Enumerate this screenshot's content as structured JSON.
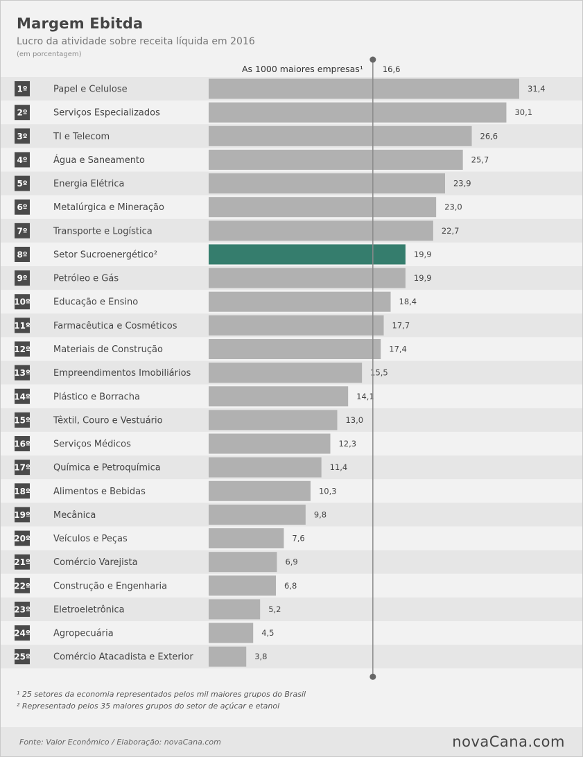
{
  "header": {
    "title": "Margem Ebitda",
    "subtitle": "Lucro da atividade sobre receita líquida em 2016",
    "unit": "(em porcentagem)"
  },
  "footnotes": [
    "¹ 25 setores da economia representados pelos mil maiores grupos do Brasil",
    "² Representado pelos 35 maiores grupos do setor de açúcar e etanol"
  ],
  "footer": {
    "source": "Fonte: Valor Econômico / Elaboração: novaCana.com",
    "brand": "novaCana.com"
  },
  "colors": {
    "bar": "#b1b1b1",
    "highlight": "#357d6d",
    "rank_badge": "#4a4a4a",
    "row_alt": "#e6e6e6",
    "row_base": "#f2f2f2",
    "reference_line": "#8a8a8a"
  },
  "chart_data": {
    "type": "bar",
    "orientation": "horizontal",
    "ranks": [
      "1º",
      "2º",
      "3º",
      "4º",
      "5º",
      "6º",
      "7º",
      "8º",
      "9º",
      "10º",
      "11º",
      "12º",
      "13º",
      "14º",
      "15º",
      "16º",
      "17º",
      "18º",
      "19º",
      "20º",
      "21º",
      "22º",
      "23º",
      "24º",
      "25º"
    ],
    "categories": [
      "Papel e Celulose",
      "Serviços Especializados",
      "TI e Telecom",
      "Água e Saneamento",
      "Energia Elétrica",
      "Metalúrgica e Mineração",
      "Transporte e Logística",
      "Setor Sucroenergético²",
      "Petróleo e Gás",
      "Educação e Ensino",
      "Farmacêutica e Cosméticos",
      "Materiais de Construção",
      "Empreendimentos Imobiliários",
      "Plástico e Borracha",
      "Têxtil, Couro e Vestuário",
      "Serviços Médicos",
      "Química e Petroquímica",
      "Alimentos e Bebidas",
      "Mecânica",
      "Veículos e Peças",
      "Comércio Varejista",
      "Construção e Engenharia",
      "Eletroeletrônica",
      "Agropecuária",
      "Comércio Atacadista e Exterior"
    ],
    "values": [
      31.4,
      30.1,
      26.6,
      25.7,
      23.9,
      23.0,
      22.7,
      19.9,
      19.9,
      18.4,
      17.7,
      17.4,
      15.5,
      14.1,
      13.0,
      12.3,
      11.4,
      10.3,
      9.8,
      7.6,
      6.9,
      6.8,
      5.2,
      4.5,
      3.8
    ],
    "value_labels": [
      "31,4",
      "30,1",
      "26,6",
      "25,7",
      "23,9",
      "23,0",
      "22,7",
      "19,9",
      "19,9",
      "18,4",
      "17,7",
      "17,4",
      "15,5",
      "14,1",
      "13,0",
      "12,3",
      "11,4",
      "10,3",
      "9,8",
      "7,6",
      "6,9",
      "6,8",
      "5,2",
      "4,5",
      "3,8"
    ],
    "highlight_index": 7,
    "reference": {
      "label": "As 1000 maiores empresas¹",
      "value": 16.6,
      "value_label": "16,6"
    },
    "xlim": [
      0,
      31.4
    ],
    "grid": false,
    "legend": "none"
  }
}
